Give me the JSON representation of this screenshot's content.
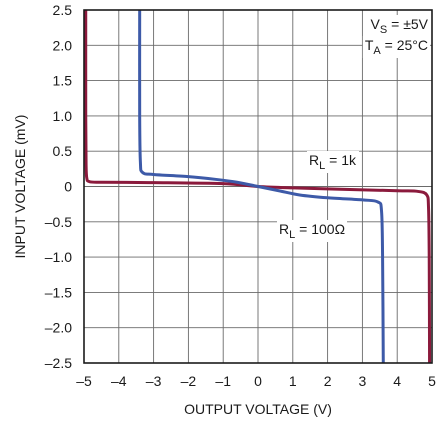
{
  "chart_data": {
    "type": "line",
    "xlabel": "OUTPUT VOLTAGE (V)",
    "ylabel": "INPUT VOLTAGE (mV)",
    "xlim": [
      -5,
      5
    ],
    "ylim": [
      -2.5,
      2.5
    ],
    "xticks": [
      -5,
      -4,
      -3,
      -2,
      -1,
      0,
      1,
      2,
      3,
      4,
      5
    ],
    "xtick_labels": [
      "–5",
      "–4",
      "–3",
      "–2",
      "–1",
      "0",
      "1",
      "2",
      "3",
      "4",
      "5"
    ],
    "yticks": [
      2.5,
      2.0,
      1.5,
      1.0,
      0.5,
      0,
      -0.5,
      -1.0,
      -1.5,
      -2.0,
      -2.5
    ],
    "ytick_labels": [
      "2.5",
      "2.0",
      "1.5",
      "1.0",
      "0.5",
      "0",
      "–0.5",
      "–1.0",
      "–1.5",
      "–2.0",
      "–2.5"
    ],
    "grid": true,
    "annotations": {
      "conditions": [
        {
          "main": "V",
          "sub": "S",
          "rest": " = ±5V"
        },
        {
          "main": "T",
          "sub": "A",
          "rest": " = 25°C"
        }
      ],
      "rl_1k": {
        "main": "R",
        "sub": "L",
        "rest": " = 1k"
      },
      "rl_100": {
        "main": "R",
        "sub": "L",
        "rest": " = 100Ω"
      }
    },
    "series": [
      {
        "label": "RL = 1k",
        "color": "#8b1a3c",
        "points": [
          [
            -4.95,
            2.5
          ],
          [
            -4.95,
            1.0
          ],
          [
            -4.94,
            0.3
          ],
          [
            -4.92,
            0.12
          ],
          [
            -4.85,
            0.07
          ],
          [
            -4.5,
            0.06
          ],
          [
            -3.0,
            0.055
          ],
          [
            -1.0,
            0.04
          ],
          [
            0,
            0.0
          ],
          [
            1.0,
            -0.02
          ],
          [
            2.5,
            -0.04
          ],
          [
            4.0,
            -0.06
          ],
          [
            4.6,
            -0.07
          ],
          [
            4.85,
            -0.12
          ],
          [
            4.9,
            -0.3
          ],
          [
            4.92,
            -1.0
          ],
          [
            4.93,
            -2.5
          ]
        ]
      },
      {
        "label": "RL = 100Ω",
        "color": "#3d5aa8",
        "points": [
          [
            -3.4,
            2.5
          ],
          [
            -3.4,
            1.0
          ],
          [
            -3.38,
            0.35
          ],
          [
            -3.32,
            0.2
          ],
          [
            -3.0,
            0.17
          ],
          [
            -2.0,
            0.14
          ],
          [
            -1.2,
            0.1
          ],
          [
            -0.6,
            0.06
          ],
          [
            0,
            0.0
          ],
          [
            0.6,
            -0.06
          ],
          [
            1.2,
            -0.12
          ],
          [
            2.0,
            -0.16
          ],
          [
            3.0,
            -0.19
          ],
          [
            3.45,
            -0.22
          ],
          [
            3.55,
            -0.35
          ],
          [
            3.58,
            -1.0
          ],
          [
            3.6,
            -2.5
          ]
        ]
      }
    ]
  }
}
